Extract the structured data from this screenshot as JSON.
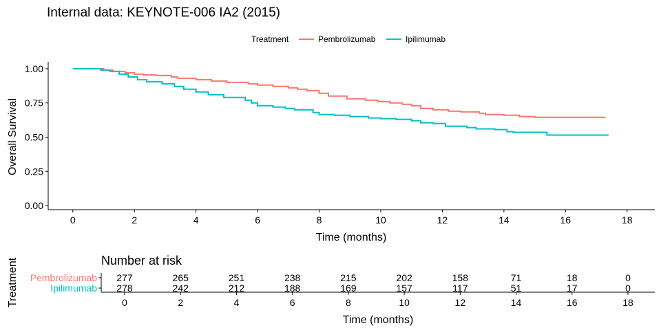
{
  "chart_data": [
    {
      "type": "line",
      "title": "Internal data: KEYNOTE-006 IA2 (2015)",
      "xlabel": "Time (months)",
      "ylabel": "Overall Survival",
      "xlim": [
        -0.8,
        18.9
      ],
      "ylim": [
        -0.03,
        1.05
      ],
      "xticks": [
        0,
        2,
        4,
        6,
        8,
        10,
        12,
        14,
        16,
        18
      ],
      "yticks": [
        "0.00",
        "0.25",
        "0.50",
        "0.75",
        "1.00"
      ],
      "grid": false,
      "legend": {
        "title": "Treatment",
        "placement": "top"
      },
      "series": [
        {
          "name": "Pembrolizumab",
          "color": "#F8766D",
          "points": [
            [
              0,
              1.0
            ],
            [
              0.5,
              1.0
            ],
            [
              1.0,
              0.99
            ],
            [
              1.3,
              0.98
            ],
            [
              1.7,
              0.97
            ],
            [
              2.0,
              0.96
            ],
            [
              2.3,
              0.955
            ],
            [
              2.7,
              0.95
            ],
            [
              3.2,
              0.94
            ],
            [
              3.4,
              0.93
            ],
            [
              4.0,
              0.92
            ],
            [
              4.5,
              0.91
            ],
            [
              5.0,
              0.9
            ],
            [
              5.7,
              0.89
            ],
            [
              6.0,
              0.88
            ],
            [
              6.5,
              0.87
            ],
            [
              7.0,
              0.86
            ],
            [
              7.3,
              0.85
            ],
            [
              7.6,
              0.84
            ],
            [
              8.0,
              0.82
            ],
            [
              8.3,
              0.8
            ],
            [
              8.9,
              0.78
            ],
            [
              9.5,
              0.77
            ],
            [
              9.9,
              0.76
            ],
            [
              10.3,
              0.75
            ],
            [
              10.7,
              0.74
            ],
            [
              11.0,
              0.73
            ],
            [
              11.3,
              0.71
            ],
            [
              11.7,
              0.7
            ],
            [
              12.2,
              0.69
            ],
            [
              12.6,
              0.685
            ],
            [
              13.2,
              0.675
            ],
            [
              13.4,
              0.665
            ],
            [
              14.0,
              0.66
            ],
            [
              14.5,
              0.65
            ],
            [
              15.0,
              0.645
            ],
            [
              17.3,
              0.645
            ]
          ]
        },
        {
          "name": "Ipilimumab",
          "color": "#00BFC4",
          "points": [
            [
              0,
              1.0
            ],
            [
              0.6,
              1.0
            ],
            [
              0.9,
              0.99
            ],
            [
              1.2,
              0.98
            ],
            [
              1.5,
              0.96
            ],
            [
              1.8,
              0.94
            ],
            [
              2.1,
              0.92
            ],
            [
              2.4,
              0.905
            ],
            [
              2.9,
              0.89
            ],
            [
              3.3,
              0.87
            ],
            [
              3.6,
              0.85
            ],
            [
              4.0,
              0.83
            ],
            [
              4.4,
              0.81
            ],
            [
              4.9,
              0.79
            ],
            [
              5.6,
              0.77
            ],
            [
              5.8,
              0.75
            ],
            [
              6.0,
              0.73
            ],
            [
              6.5,
              0.72
            ],
            [
              6.9,
              0.71
            ],
            [
              7.2,
              0.7
            ],
            [
              7.8,
              0.68
            ],
            [
              8.0,
              0.665
            ],
            [
              8.5,
              0.66
            ],
            [
              9.0,
              0.65
            ],
            [
              9.6,
              0.64
            ],
            [
              10.0,
              0.635
            ],
            [
              10.5,
              0.63
            ],
            [
              11.0,
              0.62
            ],
            [
              11.3,
              0.605
            ],
            [
              11.7,
              0.6
            ],
            [
              12.1,
              0.58
            ],
            [
              12.8,
              0.57
            ],
            [
              13.1,
              0.56
            ],
            [
              13.7,
              0.555
            ],
            [
              14.1,
              0.54
            ],
            [
              14.3,
              0.535
            ],
            [
              15.4,
              0.515
            ],
            [
              17.4,
              0.515
            ]
          ]
        }
      ]
    },
    {
      "type": "table",
      "title": "Number at risk",
      "xlabel": "Time (months)",
      "ylabel": "Treatment",
      "xticks": [
        0,
        2,
        4,
        6,
        8,
        10,
        12,
        14,
        16,
        18
      ],
      "rows": [
        {
          "name": "Pembrolizumab",
          "color": "#F8766D",
          "values": [
            277,
            265,
            251,
            238,
            215,
            202,
            158,
            71,
            18,
            0
          ]
        },
        {
          "name": "Ipilimumab",
          "color": "#00BFC4",
          "values": [
            278,
            242,
            212,
            188,
            169,
            157,
            117,
            51,
            17,
            0
          ]
        }
      ]
    }
  ]
}
